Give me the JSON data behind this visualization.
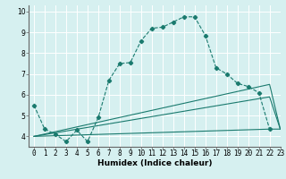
{
  "xlabel": "Humidex (Indice chaleur)",
  "background_color": "#d6f0f0",
  "grid_color": "#ffffff",
  "line_color": "#1a7a6e",
  "xlim": [
    -0.5,
    23
  ],
  "ylim": [
    3.5,
    10.3
  ],
  "xtick_labels": [
    "0",
    "1",
    "2",
    "3",
    "4",
    "5",
    "6",
    "7",
    "8",
    "9",
    "10",
    "11",
    "12",
    "13",
    "14",
    "15",
    "16",
    "17",
    "18",
    "19",
    "20",
    "21",
    "22",
    "23"
  ],
  "xtick_vals": [
    0,
    1,
    2,
    3,
    4,
    5,
    6,
    7,
    8,
    9,
    10,
    11,
    12,
    13,
    14,
    15,
    16,
    17,
    18,
    19,
    20,
    21,
    22,
    23
  ],
  "yticks": [
    4,
    5,
    6,
    7,
    8,
    9,
    10
  ],
  "curve1_x": [
    0,
    1,
    2,
    3,
    4,
    5,
    6,
    7,
    8,
    9,
    10,
    11,
    12,
    13,
    14,
    15,
    16,
    17,
    18,
    19,
    20,
    21,
    22
  ],
  "curve1_y": [
    5.5,
    4.35,
    4.1,
    3.75,
    4.3,
    3.75,
    4.9,
    6.7,
    7.5,
    7.55,
    8.6,
    9.2,
    9.25,
    9.5,
    9.75,
    9.75,
    8.85,
    7.3,
    7.0,
    6.55,
    6.4,
    6.1,
    4.35
  ],
  "curve2_x": [
    0,
    22,
    23
  ],
  "curve2_y": [
    4.0,
    6.5,
    4.35
  ],
  "curve3_x": [
    0,
    22,
    23
  ],
  "curve3_y": [
    4.0,
    5.9,
    4.35
  ],
  "curve4_x": [
    0,
    22,
    23
  ],
  "curve4_y": [
    4.0,
    4.35,
    4.35
  ],
  "xlabel_fontsize": 6.5,
  "tick_fontsize": 5.5
}
